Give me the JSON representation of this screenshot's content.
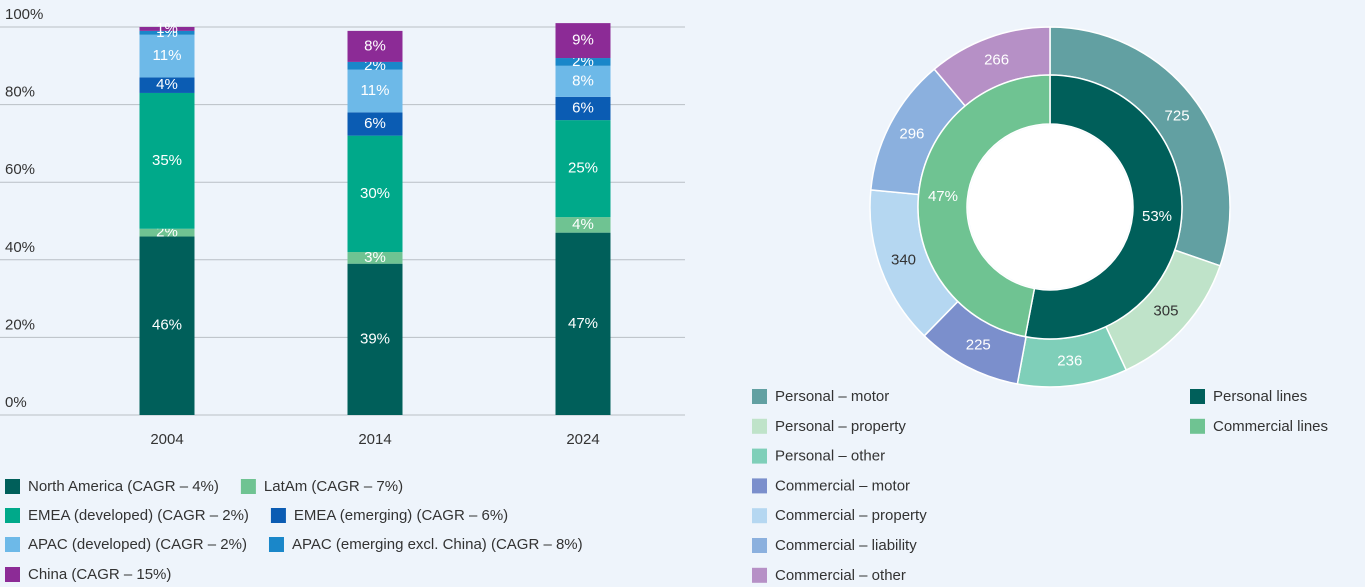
{
  "chart_data": [
    {
      "type": "stacked_bar",
      "categories": [
        "2004",
        "2014",
        "2024"
      ],
      "ylim": [
        0,
        100
      ],
      "yticks": [
        {
          "value": 0,
          "label": "0%"
        },
        {
          "value": 20,
          "label": "20%"
        },
        {
          "value": 40,
          "label": "40%"
        },
        {
          "value": 60,
          "label": "60%"
        },
        {
          "value": 80,
          "label": "80%"
        },
        {
          "value": 100,
          "label": "100%"
        }
      ],
      "grid": true,
      "series": [
        {
          "name": "North America (CAGR – 4%)",
          "color": "#005f5a",
          "values": [
            46,
            39,
            47
          ],
          "value_labels": [
            "46%",
            "39%",
            "47%"
          ]
        },
        {
          "name": "LatAm (CAGR – 7%)",
          "color": "#6fc392",
          "values": [
            2,
            3,
            4
          ],
          "value_labels": [
            "2%",
            "3%",
            "4%"
          ]
        },
        {
          "name": "EMEA (developed) (CAGR – 2%)",
          "color": "#00a98a",
          "values": [
            35,
            30,
            25
          ],
          "value_labels": [
            "35%",
            "30%",
            "25%"
          ]
        },
        {
          "name": "EMEA (emerging) (CAGR – 6%)",
          "color": "#0b5cb3",
          "values": [
            4,
            6,
            6
          ],
          "value_labels": [
            "4%",
            "6%",
            "6%"
          ]
        },
        {
          "name": "APAC (developed) (CAGR – 2%)",
          "color": "#6db9e8",
          "values": [
            11,
            11,
            8
          ],
          "value_labels": [
            "11%",
            "11%",
            "8%"
          ]
        },
        {
          "name": "APAC (emerging excl. China) (CAGR – 8%)",
          "color": "#1a87c9",
          "values": [
            1,
            2,
            2
          ],
          "value_labels": [
            "1%",
            "2%",
            "2%"
          ]
        },
        {
          "name": "China (CAGR – 15%)",
          "color": "#8c2b96",
          "values": [
            1,
            8,
            9
          ],
          "value_labels": [
            "1%",
            "8%",
            "9%"
          ]
        }
      ]
    },
    {
      "type": "donut",
      "inner": {
        "categories": [
          "Personal lines",
          "Commercial lines"
        ],
        "values": [
          53,
          47
        ],
        "value_labels": [
          "53%",
          "47%"
        ],
        "colors": [
          "#005f5a",
          "#6fc392"
        ]
      },
      "outer": {
        "categories": [
          "Personal – motor",
          "Personal – property",
          "Personal – other",
          "Commercial – motor",
          "Commercial – property",
          "Commercial – liability",
          "Commercial – other"
        ],
        "values": [
          725,
          305,
          236,
          225,
          340,
          296,
          266
        ],
        "colors": [
          "#62a0a2",
          "#bfe3c9",
          "#7fcfb9",
          "#7b8fcc",
          "#b5d7f1",
          "#8bb0de",
          "#b690c6"
        ]
      }
    }
  ]
}
